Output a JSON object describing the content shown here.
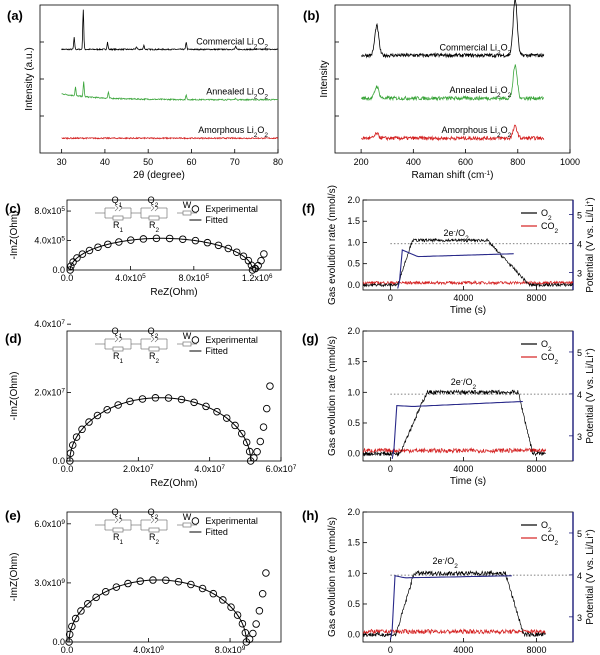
{
  "panels": [
    {
      "id": "a",
      "label": "(a)",
      "chart_data": {
        "type": "line",
        "xlabel": "2θ (degree)",
        "ylabel": "Intensity (a.u.)",
        "xlim": [
          25,
          80
        ],
        "xticks": [
          30,
          40,
          50,
          60,
          70,
          80
        ],
        "series": [
          {
            "name": "Commercial Li2O2",
            "color": "#000000",
            "baseline": 0.7,
            "peaks": [
              [
                32.9,
                0.08
              ],
              [
                35.0,
                0.27
              ],
              [
                40.6,
                0.05
              ],
              [
                47.3,
                0.02
              ],
              [
                49.0,
                0.03
              ],
              [
                58.8,
                0.05
              ],
              [
                70.2,
                0.02
              ]
            ]
          },
          {
            "name": "Annealed Li2O2",
            "color": "#3aa53a",
            "baseline": 0.36,
            "peaks": [
              [
                33.2,
                0.06
              ],
              [
                35.1,
                0.1
              ],
              [
                40.8,
                0.04
              ],
              [
                58.8,
                0.03
              ],
              [
                70.2,
                0.01
              ]
            ]
          },
          {
            "name": "Amorphous Li2O2",
            "color": "#d42020",
            "baseline": 0.1,
            "peaks": []
          }
        ],
        "labels": [
          {
            "text": "Commercial Li",
            "sub": "2",
            "text2": "O",
            "sub2": "2"
          },
          {
            "text": "Annealed Li",
            "sub": "2",
            "text2": "O",
            "sub2": "2"
          },
          {
            "text": "Amorphous Li",
            "sub": "2",
            "text2": "O",
            "sub2": "2"
          }
        ]
      }
    },
    {
      "id": "b",
      "label": "(b)",
      "chart_data": {
        "type": "line",
        "xlabel": "Raman shift (cm",
        "xlabel_sup": "-1",
        "xlabel_end": ")",
        "ylabel": "Intensity",
        "xlim": [
          100,
          1000
        ],
        "xticks": [
          200,
          400,
          600,
          800,
          1000
        ],
        "series": [
          {
            "name": "Commercial Li2O2",
            "color": "#000000",
            "baseline": 0.66,
            "peaks": [
              [
                260,
                0.2
              ],
              [
                790,
                0.38
              ]
            ]
          },
          {
            "name": "Annealed Li2O2",
            "color": "#3aa53a",
            "baseline": 0.37,
            "peaks": [
              [
                260,
                0.08
              ],
              [
                790,
                0.22
              ]
            ]
          },
          {
            "name": "Amorphous Li2O2",
            "color": "#d42020",
            "baseline": 0.1,
            "peaks": [
              [
                260,
                0.03
              ],
              [
                790,
                0.08
              ]
            ]
          }
        ],
        "labels": [
          {
            "text": "Commercial Li",
            "sub": "2",
            "text2": "O",
            "sub2": "2"
          },
          {
            "text": "Annealed Li",
            "sub": "2",
            "text2": "O",
            "sub2": "2"
          },
          {
            "text": "Amorphous Li",
            "sub": "2",
            "text2": "O",
            "sub2": "2"
          }
        ]
      }
    },
    {
      "id": "c",
      "label": "(c)",
      "chart_data": {
        "type": "scatter",
        "xlabel": "ReZ(Ohm)",
        "ylabel": "-ImZ(Ohm)",
        "xlim": [
          0,
          1350000.0
        ],
        "ylim": [
          0,
          950000.0
        ],
        "xticks": [
          {
            "v": 0,
            "m": "0.0",
            "e": ""
          },
          {
            "v": 400000.0,
            "m": "4.0x10",
            "e": "5"
          },
          {
            "v": 800000.0,
            "m": "8.0x10",
            "e": "5"
          },
          {
            "v": 1200000.0,
            "m": "1.2x10",
            "e": "6"
          }
        ],
        "yticks": [
          {
            "v": 0,
            "m": "0.0",
            "e": ""
          },
          {
            "v": 400000.0,
            "m": "4.0x10",
            "e": "5"
          },
          {
            "v": 800000.0,
            "m": "8.0x10",
            "e": "5"
          }
        ],
        "arc": {
          "start": 20000.0,
          "end": 1170000.0,
          "peak": 430000.0
        },
        "tail": {
          "points": 4,
          "dx": 18000.0,
          "dy": 22000.0
        },
        "legend": [
          "Experimental",
          "Fitted"
        ],
        "circuit": [
          "Q1",
          "Q2",
          "W",
          "R1",
          "R2"
        ]
      }
    },
    {
      "id": "d",
      "label": "(d)",
      "chart_data": {
        "type": "scatter",
        "xlabel": "ReZ(Ohm)",
        "ylabel": "-ImZ(Ohm)",
        "xlim": [
          0,
          60000000.0
        ],
        "ylim": [
          0,
          38000000.0
        ],
        "xticks": [
          {
            "v": 0,
            "m": "0.0",
            "e": ""
          },
          {
            "v": 20000000.0,
            "m": "2.0x10",
            "e": "7"
          },
          {
            "v": 40000000.0,
            "m": "4.0x10",
            "e": "7"
          },
          {
            "v": 60000000.0,
            "m": "6.0x10",
            "e": "7"
          }
        ],
        "yticks": [
          {
            "v": 0,
            "m": "0.0",
            "e": ""
          },
          {
            "v": 20000000.0,
            "m": "2.0x10",
            "e": "7"
          },
          {
            "v": 40000000.0,
            "m": "4.0x10",
            "e": "7"
          }
        ],
        "arc": {
          "start": 800000.0,
          "end": 51500000.0,
          "peak": 18500000.0
        },
        "tail": {
          "points": 6,
          "dx": 900000.0,
          "dy": 1000000.0
        },
        "legend": [
          "Experimental",
          "Fitted"
        ],
        "circuit": [
          "Q1",
          "Q2",
          "W",
          "R1",
          "R2"
        ]
      }
    },
    {
      "id": "e",
      "label": "(e)",
      "chart_data": {
        "type": "scatter",
        "xlabel": "ReZ(Ohm)",
        "ylabel": "-ImZ(Ohm)",
        "xlim": [
          0,
          10500000000.0
        ],
        "ylim": [
          0,
          6600000000.0
        ],
        "xticks": [
          {
            "v": 0,
            "m": "0.0",
            "e": ""
          },
          {
            "v": 4000000000.0,
            "m": "4.0x10",
            "e": "9"
          },
          {
            "v": 8000000000.0,
            "m": "8.0x10",
            "e": "9"
          }
        ],
        "yticks": [
          {
            "v": 0,
            "m": "0.0",
            "e": ""
          },
          {
            "v": 3000000000.0,
            "m": "3.0x10",
            "e": "9"
          },
          {
            "v": 6000000000.0,
            "m": "6.0x10",
            "e": "9"
          }
        ],
        "arc": {
          "start": 100000000.0,
          "end": 8800000000.0,
          "peak": 3150000000.0
        },
        "tail": {
          "points": 6,
          "dx": 160000000.0,
          "dy": 160000000.0
        },
        "legend": [
          "Experimental",
          "Fitted"
        ],
        "circuit": [
          "Q1",
          "Q2",
          "W",
          "R1",
          "R2"
        ]
      }
    },
    {
      "id": "f",
      "label": "(f)",
      "chart_data": {
        "type": "line",
        "xlabel": "Time (s)",
        "ylabel": "Gas evolution rate (nmol/s)",
        "y2label": "Potential (V vs. Li/Li",
        "y2label_sup": "+",
        "y2label_end": ")",
        "xlim": [
          -1500,
          10000
        ],
        "ylim": [
          -0.12,
          2.0
        ],
        "y2lim": [
          2.4,
          5.5
        ],
        "xticks": [
          0,
          4000,
          8000
        ],
        "yticks": [
          0.0,
          0.5,
          1.0,
          1.5,
          2.0
        ],
        "y2ticks": [
          3,
          4,
          5
        ],
        "annotation": {
          "a": "2e",
          "sup": "-",
          "b": "/O",
          "sub": "2",
          "x": 3600,
          "y": 1.15
        },
        "ref_line": 0.97,
        "o2": {
          "start": 400,
          "rise_end": 1200,
          "plateau": 1.05,
          "fall_start": 5300,
          "fall_end": 7600,
          "t_end": 10000
        },
        "potential": {
          "start": 500,
          "jump_to": 3.78,
          "t_min": 1500,
          "v_min": 3.55,
          "end": 6800,
          "v_end": 3.65
        },
        "co2_level": 0.05,
        "legend": [
          {
            "main": "O",
            "sub": "2"
          },
          {
            "main": "CO",
            "sub": "2"
          }
        ]
      }
    },
    {
      "id": "g",
      "label": "(g)",
      "chart_data": {
        "type": "line",
        "xlabel": "Time (s)",
        "ylabel": "Gas evolution rate (nmol/s)",
        "y2label": "Potential (V vs. Li/Li",
        "y2label_sup": "+",
        "y2label_end": ")",
        "xlim": [
          -1500,
          10000
        ],
        "ylim": [
          -0.12,
          2.0
        ],
        "y2lim": [
          2.4,
          5.5
        ],
        "xticks": [
          0,
          4000,
          8000
        ],
        "yticks": [
          0.0,
          0.5,
          1.0,
          1.5,
          2.0
        ],
        "y2ticks": [
          3,
          4,
          5
        ],
        "annotation": {
          "a": "2e",
          "sup": "-",
          "b": "/O",
          "sub": "2",
          "x": 4000,
          "y": 1.12
        },
        "ref_line": 0.97,
        "o2": {
          "start": 500,
          "rise_end": 2000,
          "plateau": 1.0,
          "fall_start": 7000,
          "fall_end": 7800,
          "t_end": 8500
        },
        "potential": {
          "start": 200,
          "jump_to": 3.72,
          "t_min": 1200,
          "v_min": 3.7,
          "end": 7300,
          "v_end": 3.82
        },
        "co2_level": 0.05,
        "legend": [
          {
            "main": "O",
            "sub": "2"
          },
          {
            "main": "CO",
            "sub": "2"
          }
        ]
      }
    },
    {
      "id": "h",
      "label": "(h)",
      "chart_data": {
        "type": "line",
        "xlabel": "Time (s)",
        "ylabel": "Gas evolution rate (nmol/s)",
        "y2label": "Potential (V vs. Li/Li",
        "y2label_sup": "+",
        "y2label_end": ")",
        "xlim": [
          -1500,
          10000
        ],
        "ylim": [
          -0.12,
          2.0
        ],
        "y2lim": [
          2.4,
          5.5
        ],
        "xticks": [
          0,
          4000,
          8000
        ],
        "yticks": [
          0.0,
          0.5,
          1.0,
          1.5,
          2.0
        ],
        "y2ticks": [
          3,
          4,
          5
        ],
        "annotation": {
          "a": "2e",
          "sup": "-",
          "b": "/O",
          "sub": "2",
          "x": 3000,
          "y": 1.15
        },
        "ref_line": 0.97,
        "o2": {
          "start": 300,
          "rise_end": 1300,
          "plateau": 1.0,
          "fall_start": 6300,
          "fall_end": 7300,
          "t_end": 8500
        },
        "potential": {
          "start": 100,
          "jump_to": 3.98,
          "t_min": 800,
          "v_min": 3.93,
          "end": 6700,
          "v_end": 3.98
        },
        "co2_level": 0.05,
        "legend": [
          {
            "main": "O",
            "sub": "2"
          },
          {
            "main": "CO",
            "sub": "2"
          }
        ]
      }
    }
  ]
}
